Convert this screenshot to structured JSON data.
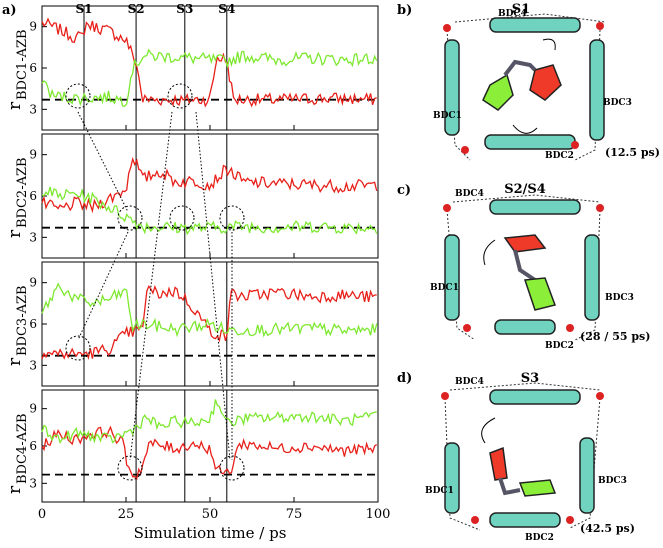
{
  "panel_a": {
    "label": "a)",
    "state_labels": [
      "S1",
      "S2",
      "S3",
      "S4"
    ],
    "state_lines_ps": [
      12.5,
      28,
      42.5,
      55
    ],
    "xlabel": "Simulation time / ps",
    "xticks": [
      "0",
      "25",
      "50",
      "75",
      "100"
    ],
    "yticks": [
      "3",
      "6",
      "9"
    ],
    "colors": {
      "red": "#e8201a",
      "green": "#7ee830"
    },
    "subplots": [
      {
        "ylabel": "r",
        "ysub": "BDC1-AZB"
      },
      {
        "ylabel": "r",
        "ysub": "BDC2-AZB"
      },
      {
        "ylabel": "r",
        "ysub": "BDC3-AZB"
      },
      {
        "ylabel": "r",
        "ysub": "BDC4-AZB"
      }
    ]
  },
  "chart_data": [
    {
      "type": "line",
      "title": "",
      "xlabel": "",
      "ylabel": "rBDC1-AZB",
      "xlim": [
        0,
        100
      ],
      "ylim": [
        1.5,
        10.5
      ],
      "reference_line_y": 3.7,
      "series": [
        {
          "color": "red",
          "points": [
            [
              0,
              9.3
            ],
            [
              5,
              8.8
            ],
            [
              10,
              8.2
            ],
            [
              12,
              8.3
            ],
            [
              13,
              9.2
            ],
            [
              20,
              8.7
            ],
            [
              25,
              8.0
            ],
            [
              28,
              6.4
            ],
            [
              30,
              3.7
            ],
            [
              40,
              3.7
            ],
            [
              42,
              3.6
            ],
            [
              44,
              3.7
            ],
            [
              50,
              3.7
            ],
            [
              52,
              6.8
            ],
            [
              55,
              6.6
            ],
            [
              57,
              3.7
            ],
            [
              70,
              3.7
            ],
            [
              85,
              3.8
            ],
            [
              100,
              3.7
            ]
          ]
        },
        {
          "color": "green",
          "points": [
            [
              0,
              5.2
            ],
            [
              3,
              4.0
            ],
            [
              10,
              3.8
            ],
            [
              20,
              3.9
            ],
            [
              25,
              3.6
            ],
            [
              27,
              6.0
            ],
            [
              30,
              6.9
            ],
            [
              40,
              6.8
            ],
            [
              50,
              6.6
            ],
            [
              55,
              6.5
            ],
            [
              60,
              6.9
            ],
            [
              70,
              6.6
            ],
            [
              80,
              6.7
            ],
            [
              90,
              6.6
            ],
            [
              100,
              6.7
            ]
          ]
        }
      ]
    },
    {
      "type": "line",
      "title": "",
      "xlabel": "",
      "ylabel": "rBDC2-AZB",
      "xlim": [
        0,
        100
      ],
      "ylim": [
        1.5,
        10.5
      ],
      "reference_line_y": 3.7,
      "series": [
        {
          "color": "red",
          "points": [
            [
              0,
              5.5
            ],
            [
              5,
              5.0
            ],
            [
              10,
              5.5
            ],
            [
              15,
              5.2
            ],
            [
              20,
              5.8
            ],
            [
              25,
              6.5
            ],
            [
              27,
              9.0
            ],
            [
              30,
              7.2
            ],
            [
              35,
              7.8
            ],
            [
              40,
              7.0
            ],
            [
              45,
              7.1
            ],
            [
              50,
              6.8
            ],
            [
              55,
              8.0
            ],
            [
              60,
              7.0
            ],
            [
              70,
              6.9
            ],
            [
              80,
              6.8
            ],
            [
              90,
              6.7
            ],
            [
              100,
              6.8
            ]
          ]
        },
        {
          "color": "green",
          "points": [
            [
              0,
              6.5
            ],
            [
              5,
              6.0
            ],
            [
              10,
              6.2
            ],
            [
              15,
              5.8
            ],
            [
              20,
              5.2
            ],
            [
              25,
              4.5
            ],
            [
              30,
              3.8
            ],
            [
              40,
              3.7
            ],
            [
              50,
              3.7
            ],
            [
              60,
              3.8
            ],
            [
              70,
              3.7
            ],
            [
              80,
              3.8
            ],
            [
              90,
              3.7
            ],
            [
              100,
              3.7
            ]
          ]
        }
      ]
    },
    {
      "type": "line",
      "title": "",
      "xlabel": "",
      "ylabel": "rBDC3-AZB",
      "xlim": [
        0,
        100
      ],
      "ylim": [
        1.5,
        10.5
      ],
      "reference_line_y": 3.7,
      "series": [
        {
          "color": "red",
          "points": [
            [
              0,
              3.9
            ],
            [
              10,
              3.8
            ],
            [
              15,
              3.9
            ],
            [
              20,
              4.2
            ],
            [
              25,
              5.3
            ],
            [
              30,
              5.6
            ],
            [
              31,
              8.5
            ],
            [
              35,
              8.2
            ],
            [
              40,
              8.4
            ],
            [
              45,
              7.2
            ],
            [
              50,
              5.5
            ],
            [
              55,
              5.0
            ],
            [
              56,
              8.2
            ],
            [
              60,
              8.0
            ],
            [
              70,
              8.3
            ],
            [
              80,
              8.0
            ],
            [
              90,
              8.1
            ],
            [
              100,
              7.9
            ]
          ]
        },
        {
          "color": "green",
          "points": [
            [
              0,
              6.8
            ],
            [
              5,
              8.8
            ],
            [
              10,
              7.8
            ],
            [
              15,
              7.5
            ],
            [
              20,
              7.8
            ],
            [
              25,
              8.4
            ],
            [
              27,
              5.8
            ],
            [
              30,
              6.0
            ],
            [
              35,
              5.8
            ],
            [
              40,
              5.6
            ],
            [
              50,
              6.0
            ],
            [
              55,
              5.5
            ],
            [
              60,
              5.6
            ],
            [
              70,
              5.6
            ],
            [
              80,
              5.7
            ],
            [
              90,
              5.5
            ],
            [
              100,
              5.6
            ]
          ]
        }
      ]
    },
    {
      "type": "line",
      "title": "",
      "xlabel": "",
      "ylabel": "rBDC4-AZB",
      "xlim": [
        0,
        100
      ],
      "ylim": [
        1.5,
        10.5
      ],
      "reference_line_y": 3.7,
      "series": [
        {
          "color": "red",
          "points": [
            [
              0,
              6.0
            ],
            [
              5,
              7.0
            ],
            [
              10,
              6.5
            ],
            [
              15,
              7.0
            ],
            [
              20,
              7.2
            ],
            [
              24,
              6.2
            ],
            [
              26,
              4.0
            ],
            [
              28,
              3.6
            ],
            [
              30,
              4.5
            ],
            [
              32,
              6.2
            ],
            [
              40,
              5.8
            ],
            [
              45,
              6.2
            ],
            [
              50,
              5.8
            ],
            [
              52,
              4.0
            ],
            [
              56,
              3.8
            ],
            [
              58,
              5.8
            ],
            [
              60,
              6.2
            ],
            [
              70,
              5.8
            ],
            [
              80,
              6.0
            ],
            [
              90,
              5.6
            ],
            [
              100,
              5.8
            ]
          ]
        },
        {
          "color": "green",
          "points": [
            [
              0,
              7.5
            ],
            [
              5,
              6.5
            ],
            [
              10,
              7.0
            ],
            [
              15,
              6.8
            ],
            [
              20,
              6.5
            ],
            [
              25,
              7.0
            ],
            [
              28,
              7.5
            ],
            [
              31,
              8.3
            ],
            [
              35,
              7.5
            ],
            [
              40,
              8.0
            ],
            [
              45,
              7.8
            ],
            [
              50,
              8.2
            ],
            [
              52,
              9.8
            ],
            [
              55,
              7.8
            ],
            [
              60,
              8.2
            ],
            [
              70,
              8.3
            ],
            [
              80,
              8.4
            ],
            [
              90,
              8.0
            ],
            [
              100,
              8.4
            ]
          ]
        }
      ]
    }
  ],
  "panel_b": {
    "label": "b)",
    "title": "S1",
    "time": "(12.5 ps)",
    "labels": [
      "BDC4",
      "BDC3",
      "BDC1",
      "BDC2"
    ]
  },
  "panel_c": {
    "label": "c)",
    "title": "S2/S4",
    "time": "(28 / 55 ps)",
    "labels": [
      "BDC4",
      "BDC3",
      "BDC1",
      "BDC2"
    ]
  },
  "panel_d": {
    "label": "d)",
    "title": "S3",
    "time": "(42.5 ps)",
    "labels": [
      "BDC4",
      "BDC3",
      "BDC1",
      "BDC2"
    ]
  }
}
